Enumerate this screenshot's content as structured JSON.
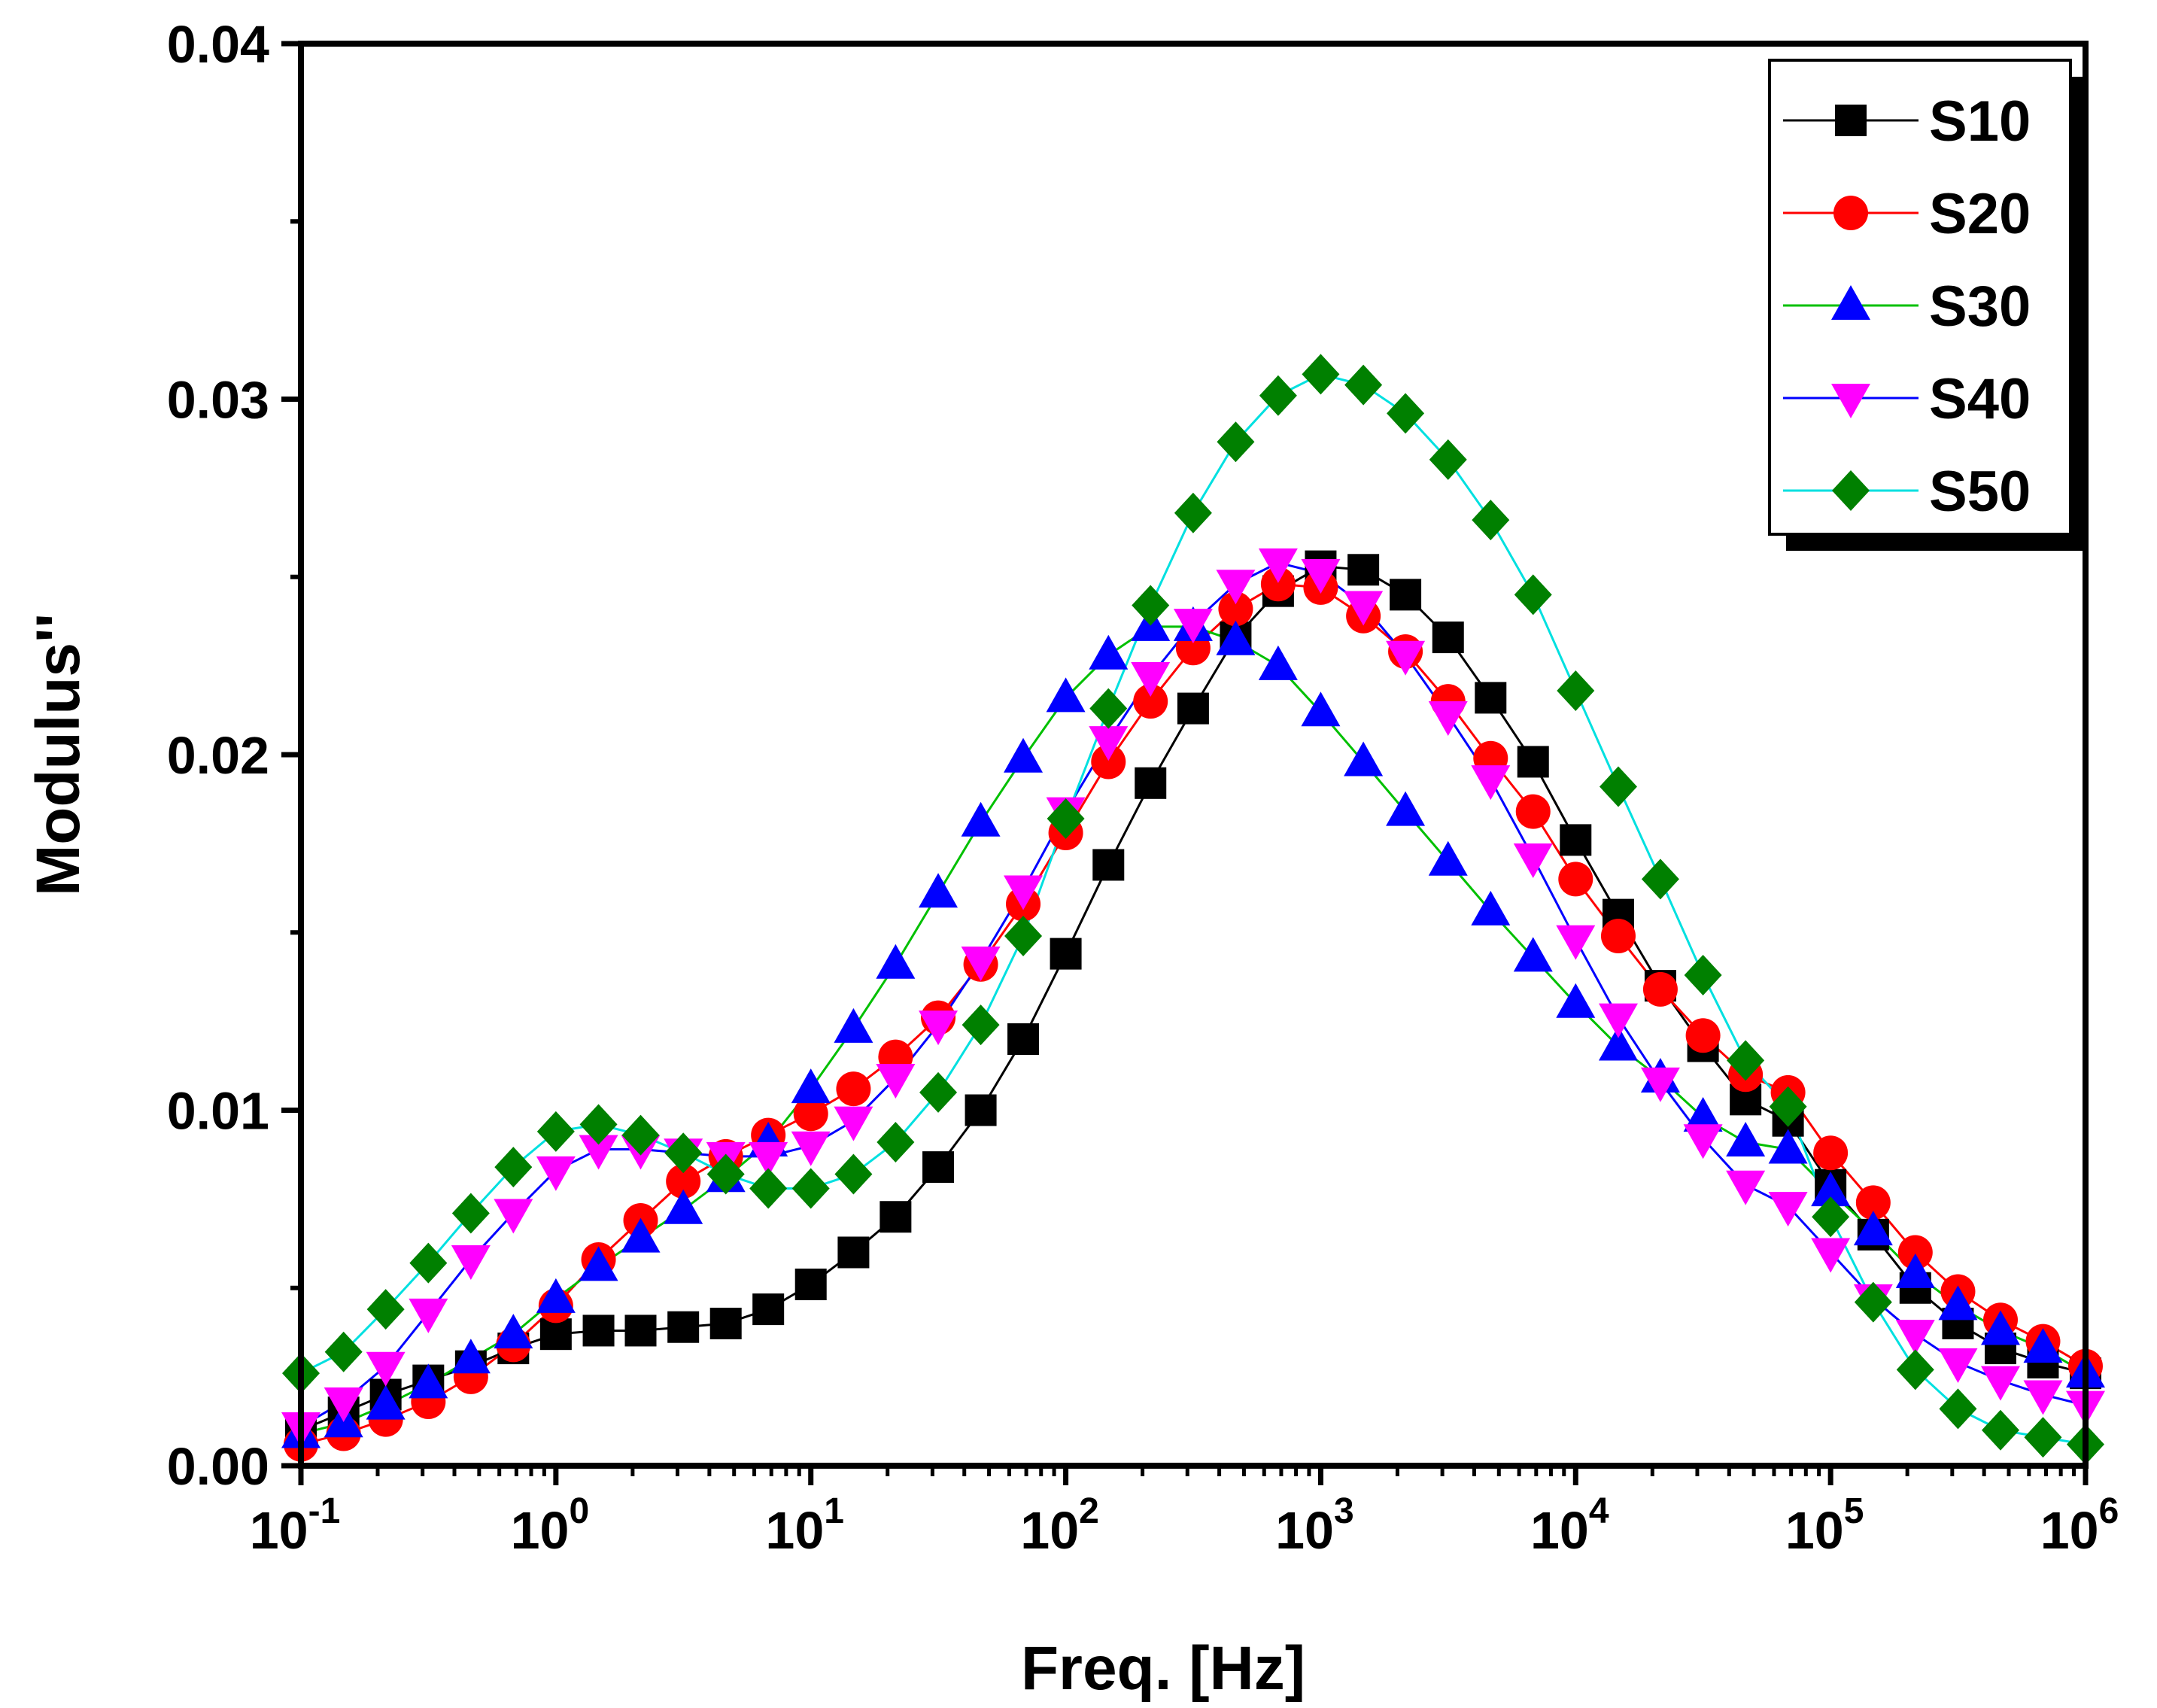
{
  "chart_data": {
    "type": "scatter",
    "xscale": "log",
    "xlabel": "Freq. [Hz]",
    "ylabel": "Modulus''",
    "xlim": [
      0.1,
      1000000
    ],
    "ylim": [
      0,
      0.04
    ],
    "x_ticks": [
      {
        "base": "10",
        "exp": "-1"
      },
      {
        "base": "10",
        "exp": "0"
      },
      {
        "base": "10",
        "exp": "1"
      },
      {
        "base": "10",
        "exp": "2"
      },
      {
        "base": "10",
        "exp": "3"
      },
      {
        "base": "10",
        "exp": "4"
      },
      {
        "base": "10",
        "exp": "5"
      },
      {
        "base": "10",
        "exp": "6"
      }
    ],
    "y_ticks": [
      "0.00",
      "0.01",
      "0.02",
      "0.03",
      "0.04"
    ],
    "legend_position": "top-right",
    "x": [
      0.1,
      0.147,
      0.215,
      0.316,
      0.464,
      0.681,
      1,
      1.47,
      2.15,
      3.16,
      4.64,
      6.81,
      10,
      14.7,
      21.5,
      31.6,
      46.4,
      68.1,
      100,
      147,
      215,
      316,
      464,
      681,
      1000,
      1470,
      2150,
      3160,
      4640,
      6810,
      10000,
      14700,
      21500,
      31600,
      46400,
      68100,
      100000,
      147000,
      215000,
      316000,
      464000,
      681000,
      1000000
    ],
    "series": [
      {
        "name": "S10",
        "color": "#000000",
        "marker": "square",
        "line": "#000000",
        "values": [
          0.001,
          0.0015,
          0.002,
          0.0024,
          0.0028,
          0.0033,
          0.0037,
          0.0038,
          0.0038,
          0.0039,
          0.004,
          0.0044,
          0.0051,
          0.006,
          0.007,
          0.0084,
          0.01,
          0.012,
          0.0144,
          0.0169,
          0.0192,
          0.0213,
          0.0233,
          0.0246,
          0.0253,
          0.0252,
          0.0245,
          0.0233,
          0.0216,
          0.0198,
          0.0176,
          0.0155,
          0.0135,
          0.0118,
          0.0103,
          0.0097,
          0.0079,
          0.0065,
          0.005,
          0.004,
          0.0033,
          0.0029,
          0.0026
        ]
      },
      {
        "name": "S20",
        "color": "#ff0000",
        "marker": "circle",
        "line": "#ff0000",
        "values": [
          0.0006,
          0.0009,
          0.0013,
          0.0018,
          0.0025,
          0.0034,
          0.0045,
          0.0058,
          0.0069,
          0.008,
          0.0087,
          0.0093,
          0.0099,
          0.0106,
          0.0115,
          0.0126,
          0.0141,
          0.0158,
          0.0178,
          0.0198,
          0.0215,
          0.023,
          0.0241,
          0.0248,
          0.0247,
          0.0239,
          0.0229,
          0.0215,
          0.0199,
          0.0184,
          0.0165,
          0.0149,
          0.0134,
          0.0121,
          0.011,
          0.0105,
          0.0088,
          0.0074,
          0.006,
          0.0049,
          0.0041,
          0.0035,
          0.0028
        ]
      },
      {
        "name": "S30",
        "color": "#0000ff",
        "marker": "triangle-up",
        "line": "#00c000",
        "values": [
          0.0009,
          0.0012,
          0.0017,
          0.0023,
          0.003,
          0.0037,
          0.0047,
          0.0056,
          0.0064,
          0.0072,
          0.0081,
          0.0091,
          0.0106,
          0.0123,
          0.0141,
          0.0161,
          0.0181,
          0.0199,
          0.0216,
          0.0228,
          0.0236,
          0.0236,
          0.0232,
          0.0225,
          0.0212,
          0.0198,
          0.0184,
          0.017,
          0.0156,
          0.0143,
          0.013,
          0.0118,
          0.0109,
          0.0098,
          0.0091,
          0.0089,
          0.0077,
          0.0066,
          0.0054,
          0.0045,
          0.0038,
          0.0033,
          0.0026
        ]
      },
      {
        "name": "S40",
        "color": "#ff00ff",
        "marker": "triangle-down",
        "line": "#0000ff",
        "values": [
          0.0011,
          0.0018,
          0.0028,
          0.0043,
          0.0058,
          0.0071,
          0.0083,
          0.0089,
          0.0089,
          0.0088,
          0.0087,
          0.0087,
          0.009,
          0.0097,
          0.0109,
          0.0124,
          0.0142,
          0.0162,
          0.0184,
          0.0204,
          0.0222,
          0.0237,
          0.0248,
          0.0254,
          0.0251,
          0.0242,
          0.0228,
          0.0211,
          0.0193,
          0.0171,
          0.0148,
          0.0126,
          0.0108,
          0.0092,
          0.0079,
          0.0073,
          0.006,
          0.0047,
          0.0037,
          0.0029,
          0.0024,
          0.002,
          0.0017
        ]
      },
      {
        "name": "S50",
        "color": "#008000",
        "marker": "diamond",
        "line": "#00e0e0",
        "values": [
          0.0026,
          0.0032,
          0.0044,
          0.0057,
          0.0071,
          0.0084,
          0.0094,
          0.0096,
          0.0093,
          0.0088,
          0.0082,
          0.0078,
          0.0078,
          0.0082,
          0.0091,
          0.0105,
          0.0124,
          0.0149,
          0.0182,
          0.0213,
          0.0242,
          0.0268,
          0.0288,
          0.0301,
          0.0307,
          0.0304,
          0.0296,
          0.0283,
          0.0266,
          0.0245,
          0.0218,
          0.0191,
          0.0165,
          0.0138,
          0.0114,
          0.0101,
          0.007,
          0.0046,
          0.0027,
          0.0016,
          0.001,
          0.0008,
          0.0006
        ]
      }
    ]
  }
}
